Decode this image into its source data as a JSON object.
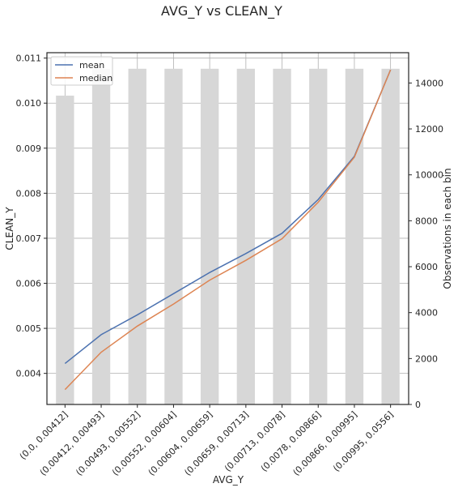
{
  "chart_data": {
    "type": "bar+line",
    "title": "AVG_Y   vs   CLEAN_Y",
    "xlabel": "AVG_Y",
    "ylabel": "CLEAN_Y",
    "y2label": "Observations in each bin",
    "categories": [
      "(0.0, 0.00412]",
      "(0.00412, 0.00493]",
      "(0.00493, 0.00552]",
      "(0.00552, 0.00604]",
      "(0.00604, 0.00659]",
      "(0.00659, 0.00713]",
      "(0.00713, 0.0078]",
      "(0.0078, 0.00866]",
      "(0.00866, 0.00995]",
      "(0.00995, 0.0556]"
    ],
    "series": [
      {
        "name": "mean",
        "axis": "left",
        "color": "#4c72b0",
        "values": [
          0.00422,
          0.00486,
          0.0053,
          0.00577,
          0.00624,
          0.00666,
          0.00711,
          0.00786,
          0.00882,
          0.01074
        ]
      },
      {
        "name": "median",
        "axis": "left",
        "color": "#dd8452",
        "values": [
          0.00364,
          0.00447,
          0.00505,
          0.00554,
          0.00607,
          0.00651,
          0.00699,
          0.0078,
          0.0088,
          0.01074
        ]
      }
    ],
    "bars": {
      "axis": "right",
      "color": "#d7d7d7",
      "values": [
        13450,
        14620,
        14620,
        14620,
        14620,
        14620,
        14620,
        14620,
        14620,
        14620
      ]
    },
    "ylim": [
      0.00331,
      0.01112
    ],
    "y2lim": [
      0,
      15320
    ],
    "yticks": [
      0.004,
      0.005,
      0.006,
      0.007,
      0.008,
      0.009,
      0.01,
      0.011
    ],
    "yticklabels": [
      "0.004",
      "0.005",
      "0.006",
      "0.007",
      "0.008",
      "0.009",
      "0.010",
      "0.011"
    ],
    "y2ticks": [
      0,
      2000,
      4000,
      6000,
      8000,
      10000,
      12000,
      14000
    ],
    "y2ticklabels": [
      "0",
      "2000",
      "4000",
      "6000",
      "8000",
      "10000",
      "12000",
      "14000"
    ],
    "grid": true,
    "legend": "upper-left"
  }
}
